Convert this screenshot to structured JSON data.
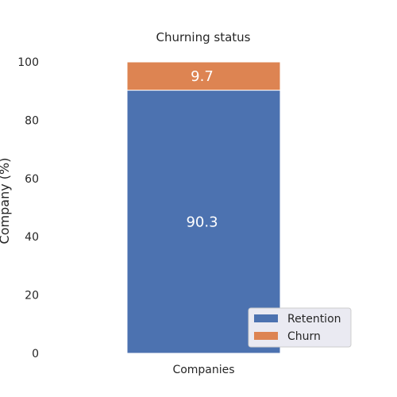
{
  "chart_data": {
    "type": "bar",
    "stacked": true,
    "title": "Churning status",
    "xlabel": "",
    "ylabel": "Company (%)",
    "categories": [
      "Companies"
    ],
    "ylim": [
      0,
      100
    ],
    "yticks": [
      "0",
      "20",
      "40",
      "60",
      "80",
      "100"
    ],
    "ytick_values": [
      0,
      20,
      40,
      60,
      80,
      100
    ],
    "grid": false,
    "legend_position": "lower-right",
    "series": [
      {
        "name": "Retention",
        "values": [
          90.3
        ],
        "label": "90.3",
        "color": "#4c72b0"
      },
      {
        "name": "Churn",
        "values": [
          9.7
        ],
        "label": "9.7",
        "color": "#dd8452"
      }
    ]
  }
}
